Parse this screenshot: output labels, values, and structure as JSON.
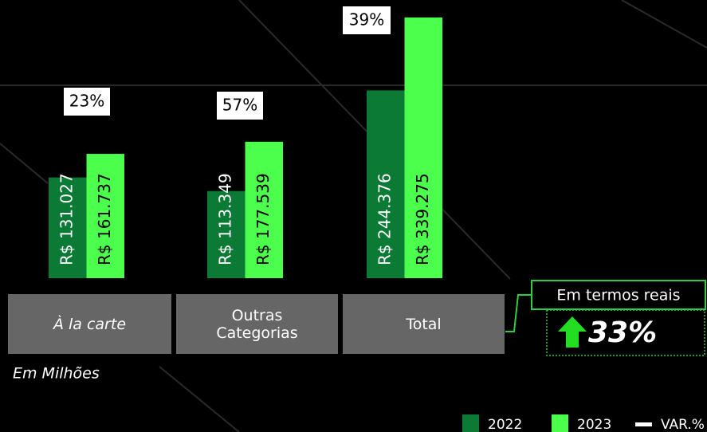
{
  "chart_data": {
    "type": "bar",
    "categories": [
      "À la carte",
      "Outras Categorias",
      "Total"
    ],
    "series": [
      {
        "name": "2022",
        "color": "#0b7a35",
        "values": [
          131027,
          113349,
          244376
        ],
        "value_labels": [
          "R$ 131.027",
          "R$ 113.349",
          "R$ 244.376"
        ]
      },
      {
        "name": "2023",
        "color": "#4dff4d",
        "values": [
          161737,
          177539,
          339275
        ],
        "value_labels": [
          "R$ 161.737",
          "R$ 177.539",
          "R$ 339.275"
        ]
      },
      {
        "name": "VAR.%",
        "color": "#ffffff",
        "values": [
          23,
          57,
          39
        ],
        "value_labels": [
          "23%",
          "57%",
          "39%"
        ]
      }
    ],
    "ylim": [
      0,
      362000
    ],
    "note": "Em Milhões",
    "callout": {
      "title": "Em termos reais",
      "value": 33,
      "value_label": "33%"
    }
  }
}
